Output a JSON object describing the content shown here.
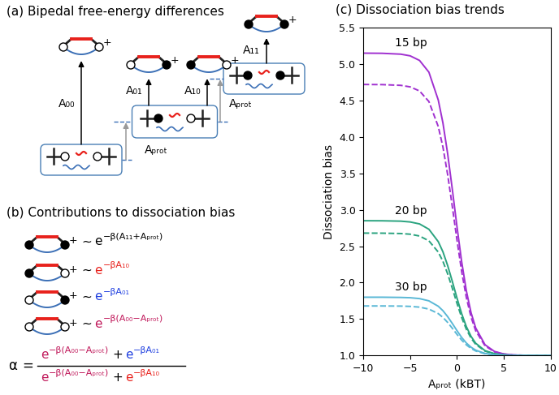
{
  "panel_a": {
    "title": "(a) Bipedal free-energy differences",
    "states": [
      "A₀₀",
      "A₀₁",
      "A₁₀",
      "A₁₁"
    ],
    "protonation_labels": [
      "Aₚᵣₒₜ",
      "Aₚᵣₒₜ"
    ],
    "charge_label": "+"
  },
  "panel_b": {
    "title": "(b) Contributions to dissociation bias",
    "relation": "∼",
    "terms": [
      {
        "base": "e",
        "exponent": "−β(A₁₁+Aₚᵣₒₜ)",
        "color": "#000000"
      },
      {
        "base": "e",
        "exponent": "−βA₁₀",
        "color": "#e8211c"
      },
      {
        "base": "e",
        "exponent": "−βA₀₁",
        "color": "#2040e0"
      },
      {
        "base": "e",
        "exponent": "−β(A₀₀−Aₚᵣₒₜ)",
        "color": "#c0185a"
      }
    ],
    "formula": {
      "lhs": "α",
      "equals": "=",
      "operator": "+",
      "numerator": [
        {
          "base": "e",
          "exponent": "−β(A₀₀−Aₚᵣₒₜ)",
          "color": "#c0185a"
        },
        {
          "base": "e",
          "exponent": "−βA₀₁",
          "color": "#2040e0"
        }
      ],
      "denominator": [
        {
          "base": "e",
          "exponent": "−β(A₀₀−Aₚᵣₒₜ)",
          "color": "#c0185a"
        },
        {
          "base": "e",
          "exponent": "−βA₁₀",
          "color": "#e8211c"
        }
      ]
    }
  },
  "chart_data": {
    "type": "line",
    "title": "(c) Dissociation bias trends",
    "x_label": "Aₚᵣₒₜ (kBT)",
    "y_label": "Dissociation bias",
    "x": [
      -10,
      -8,
      -6,
      -5,
      -4,
      -3,
      -2,
      -1.5,
      -1,
      -0.5,
      0,
      0.5,
      1,
      1.5,
      2,
      3,
      4,
      5,
      6,
      8,
      10
    ],
    "series": [
      {
        "name": "15 bp",
        "color": "#a030d0",
        "line_style": "solid",
        "values": [
          5.15,
          5.148,
          5.136,
          5.113,
          5.05,
          4.889,
          4.507,
          4.191,
          3.772,
          3.283,
          2.768,
          2.287,
          1.888,
          1.589,
          1.378,
          1.147,
          1.056,
          1.021,
          1.007,
          1.001,
          1.0
        ]
      },
      {
        "color": "#a030d0",
        "line_style": "dashed",
        "values": [
          4.72,
          4.718,
          4.708,
          4.687,
          4.631,
          4.486,
          4.143,
          3.861,
          3.485,
          3.046,
          2.585,
          2.153,
          1.796,
          1.528,
          1.339,
          1.132,
          1.05,
          1.019,
          1.007,
          1.001,
          1.0
        ]
      },
      {
        "name": "20 bp",
        "color": "#2aa37f",
        "line_style": "solid",
        "values": [
          2.85,
          2.849,
          2.844,
          2.833,
          2.806,
          2.733,
          2.563,
          2.423,
          2.236,
          2.018,
          1.788,
          1.574,
          1.396,
          1.263,
          1.168,
          1.066,
          1.025,
          1.009,
          1.003,
          1.0,
          1.0
        ]
      },
      {
        "color": "#2aa37f",
        "line_style": "dashed",
        "values": [
          2.68,
          2.679,
          2.674,
          2.665,
          2.64,
          2.574,
          2.42,
          2.292,
          2.122,
          1.924,
          1.716,
          1.521,
          1.36,
          1.239,
          1.153,
          1.06,
          1.023,
          1.008,
          1.003,
          1.0,
          1.0
        ]
      },
      {
        "name": "30 bp",
        "color": "#5ab8d6",
        "line_style": "solid",
        "values": [
          1.8,
          1.8,
          1.797,
          1.793,
          1.781,
          1.75,
          1.676,
          1.615,
          1.534,
          1.44,
          1.341,
          1.248,
          1.171,
          1.114,
          1.073,
          1.028,
          1.011,
          1.004,
          1.001,
          1.0,
          1.0
        ]
      },
      {
        "color": "#5ab8d6",
        "line_style": "dashed",
        "values": [
          1.68,
          1.68,
          1.678,
          1.674,
          1.664,
          1.637,
          1.575,
          1.523,
          1.454,
          1.374,
          1.29,
          1.211,
          1.146,
          1.097,
          1.062,
          1.024,
          1.009,
          1.003,
          1.001,
          1.0,
          1.0
        ]
      }
    ],
    "xlim": [
      -10,
      10
    ],
    "xticks": [
      {
        "value": -10,
        "label": "−10"
      },
      {
        "value": -5,
        "label": "−5"
      },
      0,
      5,
      10
    ],
    "ylim": [
      1.0,
      5.5
    ],
    "yticks": [
      1.0,
      1.5,
      2.0,
      2.5,
      3.0,
      3.5,
      4.0,
      4.5,
      5.0,
      5.5
    ],
    "grid": false
  }
}
